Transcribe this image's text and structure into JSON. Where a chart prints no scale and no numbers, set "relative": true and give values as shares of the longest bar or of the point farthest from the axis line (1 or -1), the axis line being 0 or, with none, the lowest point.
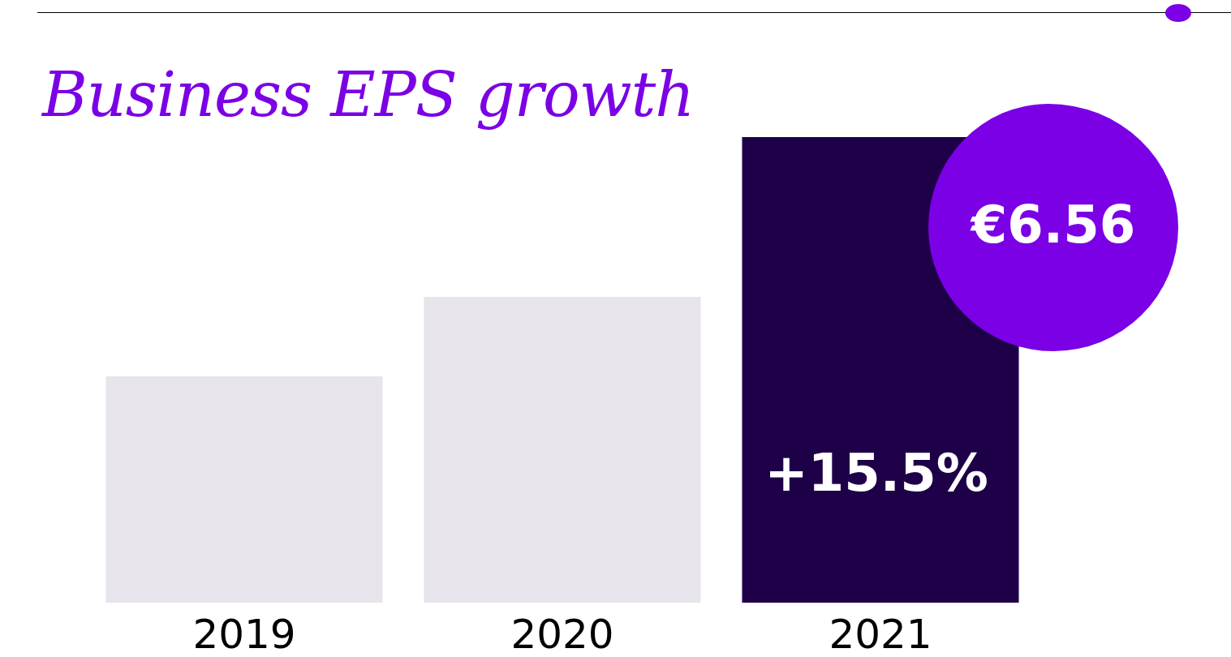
{
  "chart_data": {
    "type": "bar",
    "title": "Business EPS growth",
    "categories": [
      "2019",
      "2020",
      "2021"
    ],
    "values": [
      0.486,
      0.657,
      1
    ],
    "colors": [
      "#e7e4eb",
      "#e7e4eb",
      "#1e0049"
    ],
    "relative": true,
    "annotations": [
      "€6.56",
      "+15.5%"
    ]
  }
}
